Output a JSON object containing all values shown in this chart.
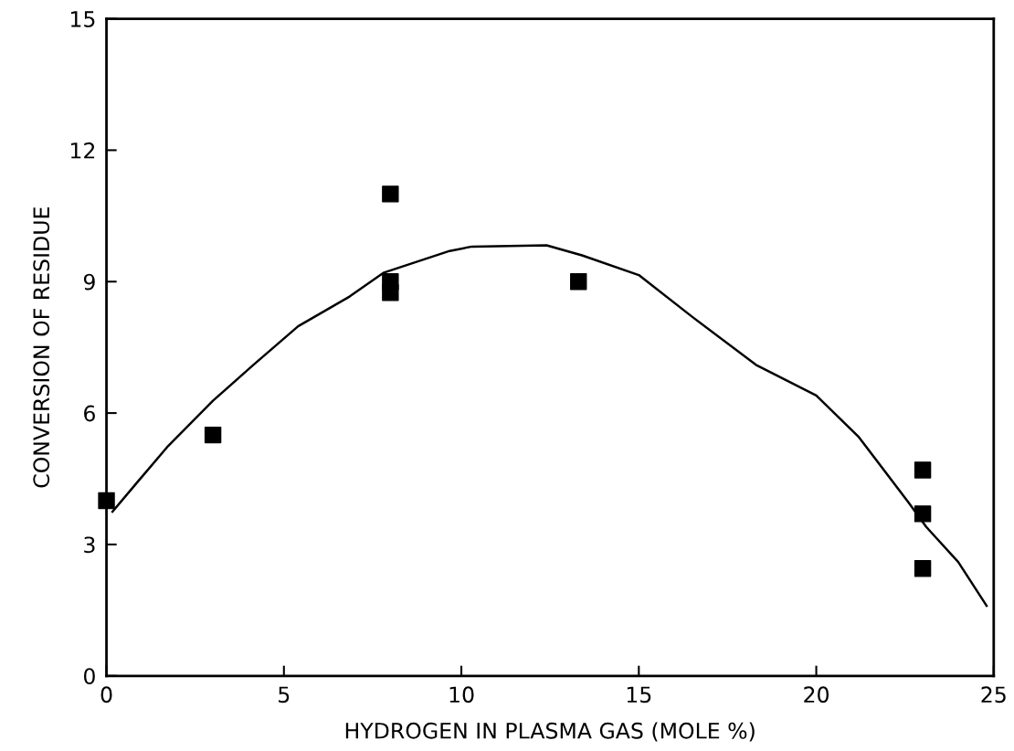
{
  "chart_data": {
    "type": "scatter",
    "xlabel": "HYDROGEN IN PLASMA GAS (MOLE %)",
    "ylabel": "CONVERSION OF RESIDUE",
    "xlim": [
      0,
      25
    ],
    "ylim": [
      0,
      15
    ],
    "xticks": [
      0,
      5,
      10,
      15,
      20,
      25
    ],
    "yticks": [
      0,
      3,
      6,
      9,
      12,
      15
    ],
    "grid": false,
    "legend": false,
    "series": [
      {
        "color": "#000000",
        "marker": "square",
        "x": [
          0,
          3,
          8,
          8,
          8,
          13.3,
          23,
          23,
          23
        ],
        "values": [
          4.0,
          5.5,
          11.0,
          9.0,
          8.75,
          9.0,
          4.7,
          3.7,
          2.45
        ]
      },
      {
        "type": "line",
        "color": "#000000",
        "marker": "none",
        "line_style": "solid",
        "x": [
          0.17,
          0.9,
          1.74,
          3.0,
          4.14,
          5.4,
          6.85,
          7.8,
          9.67,
          10.3,
          12.4,
          13.4,
          15,
          16.5,
          18.3,
          20,
          21.2,
          22.6,
          23.1,
          24,
          24.8
        ],
        "values": [
          3.75,
          4.45,
          5.25,
          6.28,
          7.1,
          7.98,
          8.66,
          9.2,
          9.7,
          9.8,
          9.83,
          9.6,
          9.15,
          8.2,
          7.1,
          6.4,
          5.45,
          3.96,
          3.4,
          2.6,
          1.6
        ]
      }
    ]
  }
}
